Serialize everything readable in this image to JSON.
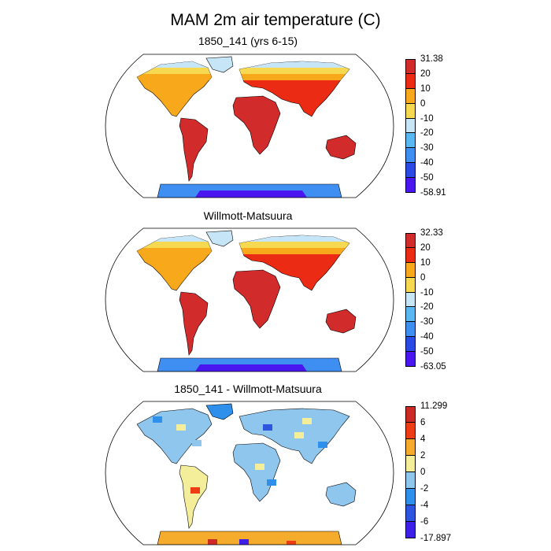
{
  "title": "MAM 2m air temperature (C)",
  "colors": {
    "temp": [
      "#4a16f0",
      "#2a4ae6",
      "#3f8ff2",
      "#59b8f2",
      "#c6e6f7",
      "#f6d950",
      "#f7a81b",
      "#eb2b13",
      "#d12b2b"
    ],
    "diff": [
      "#3d1fe8",
      "#2e55e0",
      "#2e90ea",
      "#8ec6ee",
      "#f4ee9a",
      "#f5ab2c",
      "#ee3d14",
      "#cc2a24"
    ],
    "land_fill_note": ""
  },
  "panels": [
    {
      "title": "1850_141 (yrs 6-15)",
      "colorbar": [
        "31.38",
        "20",
        "10",
        "0",
        "-10",
        "-20",
        "-30",
        "-40",
        "-50",
        "-58.91"
      ]
    },
    {
      "title": "Willmott-Matsuura",
      "colorbar": [
        "32.33",
        "20",
        "10",
        "0",
        "-10",
        "-20",
        "-30",
        "-40",
        "-50",
        "-63.05"
      ]
    },
    {
      "title": "1850_141 - Willmott-Matsuura",
      "colorbar": [
        "11.299",
        "6",
        "4",
        "2",
        "0",
        "-2",
        "-4",
        "-6",
        "-17.897"
      ]
    }
  ]
}
